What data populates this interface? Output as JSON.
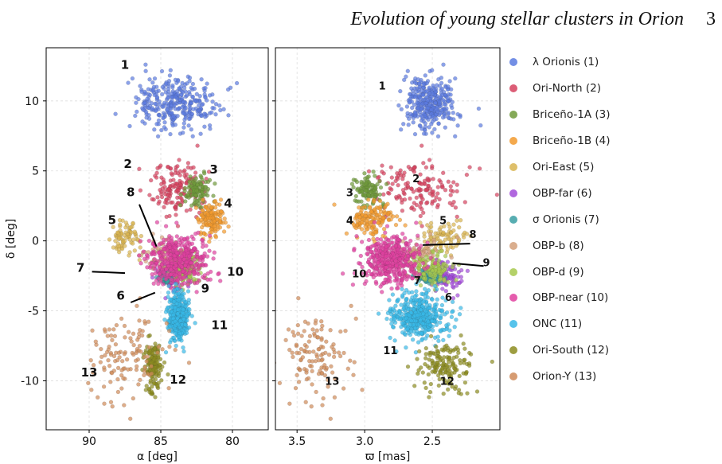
{
  "header": {
    "title": "Evolution of young stellar clusters in Orion",
    "page_number": "3"
  },
  "chart_data": [
    {
      "type": "scatter",
      "xlabel": "α [deg]",
      "ylabel": "δ [deg]",
      "xlim": [
        93,
        77.5
      ],
      "ylim": [
        -13.5,
        13.8
      ],
      "xticks": [
        "90",
        "85",
        "80"
      ],
      "yticks": [
        "10",
        "5",
        "0",
        "-5",
        "-10"
      ],
      "grid": true,
      "cluster_labels": [
        {
          "text": "1",
          "x": 87.5,
          "y": 12.3
        },
        {
          "text": "2",
          "x": 87.3,
          "y": 5.2
        },
        {
          "text": "3",
          "x": 81.3,
          "y": 4.8
        },
        {
          "text": "4",
          "x": 80.3,
          "y": 2.4
        },
        {
          "text": "5",
          "x": 88.4,
          "y": 1.2
        },
        {
          "text": "8",
          "x": 87.1,
          "y": 3.2
        },
        {
          "text": "7",
          "x": 90.6,
          "y": -2.2
        },
        {
          "text": "10",
          "x": 79.8,
          "y": -2.5
        },
        {
          "text": "9",
          "x": 81.9,
          "y": -3.7
        },
        {
          "text": "6",
          "x": 87.8,
          "y": -4.2
        },
        {
          "text": "11",
          "x": 80.9,
          "y": -6.3
        },
        {
          "text": "13",
          "x": 90.0,
          "y": -9.7
        },
        {
          "text": "12",
          "x": 83.8,
          "y": -10.2
        }
      ]
    },
    {
      "type": "scatter",
      "xlabel": "ϖ [mas]",
      "xlim": [
        3.66,
        2.0
      ],
      "ylim": [
        -13.5,
        13.8
      ],
      "xticks": [
        "3.5",
        "3.0",
        "2.5"
      ],
      "grid": true,
      "cluster_labels": [
        {
          "text": "1",
          "x": 2.87,
          "y": 10.8
        },
        {
          "text": "2",
          "x": 2.62,
          "y": 4.2
        },
        {
          "text": "3",
          "x": 3.11,
          "y": 3.2
        },
        {
          "text": "4",
          "x": 3.11,
          "y": 1.2
        },
        {
          "text": "5",
          "x": 2.42,
          "y": 1.2
        },
        {
          "text": "8",
          "x": 2.2,
          "y": 0.2
        },
        {
          "text": "9",
          "x": 2.1,
          "y": -1.8
        },
        {
          "text": "10",
          "x": 3.04,
          "y": -2.6
        },
        {
          "text": "7",
          "x": 2.61,
          "y": -3.1
        },
        {
          "text": "6",
          "x": 2.38,
          "y": -4.3
        },
        {
          "text": "11",
          "x": 2.81,
          "y": -8.1
        },
        {
          "text": "13",
          "x": 3.24,
          "y": -10.3
        },
        {
          "text": "12",
          "x": 2.39,
          "y": -10.3
        }
      ]
    }
  ],
  "clusters": [
    {
      "name": "λ Orionis (1)",
      "color": "#5b7be0",
      "ra": 84.0,
      "ra_sd": 1.5,
      "dec": 9.8,
      "dec_sd": 1.0,
      "plx": 2.52,
      "plx_sd": 0.09,
      "n": 320
    },
    {
      "name": "Ori-North (2)",
      "color": "#d6415e",
      "ra": 83.8,
      "ra_sd": 0.9,
      "dec": 3.8,
      "dec_sd": 1.0,
      "plx": 2.6,
      "plx_sd": 0.15,
      "n": 150
    },
    {
      "name": "Briceño-1A (3)",
      "color": "#6f9a3a",
      "ra": 82.5,
      "ra_sd": 0.5,
      "dec": 3.5,
      "dec_sd": 0.6,
      "plx": 2.97,
      "plx_sd": 0.05,
      "n": 110
    },
    {
      "name": "Briceño-1B (4)",
      "color": "#f29a2e",
      "ra": 81.5,
      "ra_sd": 0.5,
      "dec": 1.6,
      "dec_sd": 0.6,
      "plx": 2.95,
      "plx_sd": 0.08,
      "n": 140
    },
    {
      "name": "Ori-East (5)",
      "color": "#d8b450",
      "ra": 87.5,
      "ra_sd": 0.5,
      "dec": 0.3,
      "dec_sd": 0.7,
      "plx": 2.43,
      "plx_sd": 0.08,
      "n": 80
    },
    {
      "name": "OBP-far (6)",
      "color": "#a24cd8",
      "ra": 84.2,
      "ra_sd": 0.6,
      "dec": -2.5,
      "dec_sd": 0.6,
      "plx": 2.4,
      "plx_sd": 0.05,
      "n": 80
    },
    {
      "name": "σ Orionis (7)",
      "color": "#3a9fa3",
      "ra": 84.7,
      "ra_sd": 0.25,
      "dec": -2.55,
      "dec_sd": 0.25,
      "plx": 2.52,
      "plx_sd": 0.05,
      "n": 90
    },
    {
      "name": "OBP-b (8)",
      "color": "#d4a07a",
      "ra": 84.5,
      "ra_sd": 0.7,
      "dec": -1.0,
      "dec_sd": 0.6,
      "plx": 2.6,
      "plx_sd": 0.1,
      "n": 90
    },
    {
      "name": "OBP-d (9)",
      "color": "#a7c94e",
      "ra": 83.2,
      "ra_sd": 0.5,
      "dec": -2.0,
      "dec_sd": 0.5,
      "plx": 2.5,
      "plx_sd": 0.08,
      "n": 110
    },
    {
      "name": "OBP-near (10)",
      "color": "#e0409f",
      "ra": 83.8,
      "ra_sd": 1.1,
      "dec": -1.3,
      "dec_sd": 0.9,
      "plx": 2.8,
      "plx_sd": 0.1,
      "n": 420
    },
    {
      "name": "ONC (11)",
      "color": "#38b9e8",
      "ra": 83.8,
      "ra_sd": 0.35,
      "dec": -5.5,
      "dec_sd": 0.8,
      "plx": 2.6,
      "plx_sd": 0.1,
      "n": 420
    },
    {
      "name": "Ori-South (12)",
      "color": "#8c8c1f",
      "ra": 85.5,
      "ra_sd": 0.3,
      "dec": -8.8,
      "dec_sd": 0.8,
      "plx": 2.4,
      "plx_sd": 0.1,
      "n": 150
    },
    {
      "name": "Orion-Y (13)",
      "color": "#cf8a58",
      "ra": 87.6,
      "ra_sd": 1.3,
      "dec": -8.3,
      "dec_sd": 1.4,
      "plx": 3.35,
      "plx_sd": 0.12,
      "n": 120
    }
  ]
}
